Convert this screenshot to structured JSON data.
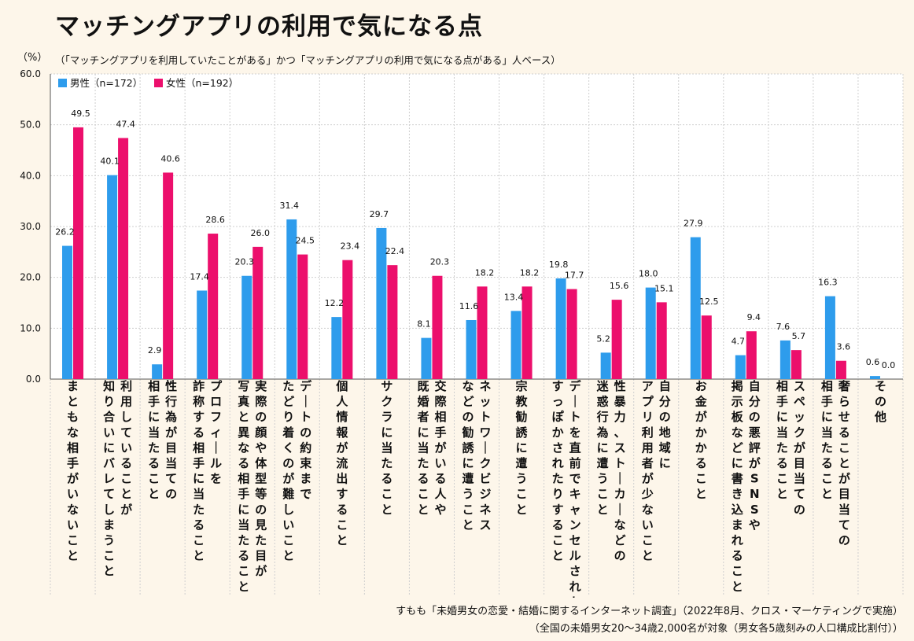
{
  "chart_data": {
    "type": "bar",
    "title": "マッチングアプリの利用で気になる点",
    "unit_label": "（%）",
    "base_note": "（「マッチングアプリを利用していたことがある」かつ「マッチングアプリの利用で気になる点がある」人ベース）",
    "ylim": [
      0,
      60
    ],
    "yticks": [
      "0.0",
      "10.0",
      "20.0",
      "30.0",
      "40.0",
      "50.0",
      "60.0"
    ],
    "grid": true,
    "legend_position": "top-left",
    "colors": {
      "male": "#2e9cec",
      "female": "#ec0f6c"
    },
    "categories": [
      "まともな相手がいないこと",
      "利用していることが知り合いにバレてしまうこと",
      "性行為が目当ての相手に当たること",
      "プロフィールを詐称する相手に当たること",
      "実際の顔や体型等の見た目が写真と異なる相手に当たること",
      "デートの約束までたどり着くのが難しいこと",
      "個人情報が流出すること",
      "サクラに当たること",
      "交際相手がいる人や既婚者に当たること",
      "ネットワークビジネスなどの勧誘に遭うこと",
      "宗教勧誘に遭うこと",
      "デートを直前でキャンセルされたりすっぽかされたりすること",
      "性暴力、ストーカーなどの迷惑行為に遭うこと",
      "自分の地域にアプリ利用者が少ないこと",
      "お金がかかること",
      "自分の悪評がSNSや掲示板などに書き込まれること",
      "スペックが目当ての相手に当たること",
      "奢らせることが目当ての相手に当たること",
      "その他"
    ],
    "category_lines": [
      [
        "まともな相手がいないこと"
      ],
      [
        "利用していることが",
        "知り合いにバレてしまうこと"
      ],
      [
        "性行為が目当ての",
        "相手に当たること"
      ],
      [
        "プロフィールを",
        "詐称する相手に当たること"
      ],
      [
        "実際の顔や体型等の見た目が",
        "写真と異なる相手に当たること"
      ],
      [
        "デートの約束まで",
        "たどり着くのが難しいこと"
      ],
      [
        "個人情報が流出すること"
      ],
      [
        "サクラに当たること"
      ],
      [
        "交際相手がいる人や",
        "既婚者に当たること"
      ],
      [
        "ネットワークビジネス",
        "などの勧誘に遭うこと"
      ],
      [
        "宗教勧誘に遭うこと"
      ],
      [
        "デートを直前でキャンセルされたり",
        "すっぽかされたりすること"
      ],
      [
        "性暴力、ストーカーなどの",
        "迷惑行為に遭うこと"
      ],
      [
        "自分の地域に",
        "アプリ利用者が少ないこと"
      ],
      [
        "お金がかかること"
      ],
      [
        "自分の悪評がSNSや",
        "掲示板などに書き込まれること"
      ],
      [
        "スペックが目当ての",
        "相手に当たること"
      ],
      [
        "奢らせることが目当ての",
        "相手に当たること"
      ],
      [
        "その他"
      ]
    ],
    "series": [
      {
        "name": "男性（n=172）",
        "key": "male",
        "values": [
          26.2,
          40.1,
          2.9,
          17.4,
          20.3,
          31.4,
          12.2,
          29.7,
          8.1,
          11.6,
          13.4,
          19.8,
          5.2,
          18.0,
          27.9,
          4.7,
          7.6,
          16.3,
          0.6
        ],
        "labels": [
          "26.2",
          "40.1",
          "2.9",
          "17.4",
          "20.3",
          "31.4",
          "12.2",
          "29.7",
          "8.1",
          "11.6",
          "13.4",
          "19.8",
          "5.2",
          "18.0",
          "27.9",
          "4.7",
          "7.6",
          "16.3",
          "0.6"
        ]
      },
      {
        "name": "女性（n=192）",
        "key": "female",
        "values": [
          49.5,
          47.4,
          40.6,
          28.6,
          26.0,
          24.5,
          23.4,
          22.4,
          20.3,
          18.2,
          18.2,
          17.7,
          15.6,
          15.1,
          12.5,
          9.4,
          5.7,
          3.6,
          0.0
        ],
        "labels": [
          "49.5",
          "47.4",
          "40.6",
          "28.6",
          "26.0",
          "24.5",
          "23.4",
          "22.4",
          "20.3",
          "18.2",
          "18.2",
          "17.7",
          "15.6",
          "15.1",
          "12.5",
          "9.4",
          "5.7",
          "3.6",
          "0.0"
        ]
      }
    ]
  },
  "footer": {
    "source": "すもも「未婚男女の恋愛・結婚に関するインターネット調査」（2022年8月、クロス・マーケティングで実施）",
    "sample": "（全国の未婚男女20～34歳2,000名が対象（男女各5歳刻みの人口構成比割付））"
  }
}
